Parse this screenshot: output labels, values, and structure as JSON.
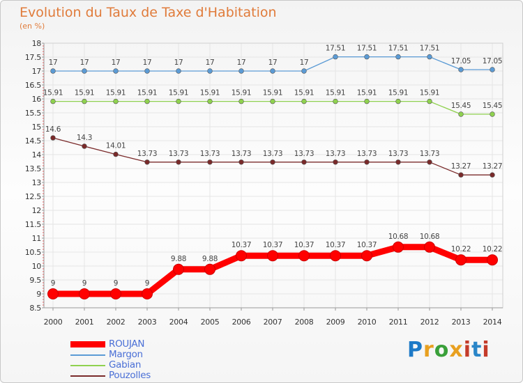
{
  "title": "Evolution du Taux de Taxe d'Habitation",
  "subtitle": "(en %)",
  "logo": {
    "text": "Proxiti",
    "colors": [
      "#1e7ac7",
      "#e8a020",
      "#3aa03a",
      "#e8a020",
      "#c43b2a",
      "#2a86c8",
      "#c43b2a"
    ]
  },
  "colors": {
    "frame_border": "#c8c8c8",
    "title": "#e07b3a",
    "grid": "#e5e5e5",
    "legend_text": "#4a6fd6"
  },
  "chart_data": {
    "type": "line",
    "title": "Evolution du Taux de Taxe d'Habitation",
    "ylabel": "(en %)",
    "xlabel": "",
    "x": [
      "2000",
      "2001",
      "2002",
      "2003",
      "2004",
      "2005",
      "2006",
      "2007",
      "2008",
      "2009",
      "2010",
      "2011",
      "2012",
      "2013",
      "2014"
    ],
    "ylim": [
      8.5,
      18
    ],
    "yticks": [
      "8.5",
      "9",
      "9.5",
      "10",
      "10.5",
      "11",
      "11.5",
      "12",
      "12.5",
      "13",
      "13.5",
      "14",
      "14.5",
      "15",
      "15.5",
      "16",
      "16.5",
      "17",
      "17.5",
      "18"
    ],
    "grid": true,
    "legend_position": "bottom-left",
    "series": [
      {
        "name": "ROUJAN",
        "color": "#ff0000",
        "emphasis": true,
        "values": [
          9,
          9,
          9,
          9,
          9.88,
          9.88,
          10.37,
          10.37,
          10.37,
          10.37,
          10.37,
          10.68,
          10.68,
          10.22,
          10.22
        ],
        "labels": [
          "9",
          "9",
          "9",
          "9",
          "9.88",
          "9.88",
          "10.37",
          "10.37",
          "10.37",
          "10.37",
          "10.37",
          "10.68",
          "10.68",
          "10.22",
          "10.22"
        ]
      },
      {
        "name": "Margon",
        "color": "#5b9bd5",
        "emphasis": false,
        "values": [
          17,
          17,
          17,
          17,
          17,
          17,
          17,
          17,
          17,
          17.51,
          17.51,
          17.51,
          17.51,
          17.05,
          17.05
        ],
        "labels": [
          "17",
          "17",
          "17",
          "17",
          "17",
          "17",
          "17",
          "17",
          "17",
          "17.51",
          "17.51",
          "17.51",
          "17.51",
          "17.05",
          "17.05"
        ]
      },
      {
        "name": "Gabian",
        "color": "#8fd14f",
        "emphasis": false,
        "values": [
          15.91,
          15.91,
          15.91,
          15.91,
          15.91,
          15.91,
          15.91,
          15.91,
          15.91,
          15.91,
          15.91,
          15.91,
          15.91,
          15.45,
          15.45
        ],
        "labels": [
          "15.91",
          "15.91",
          "15.91",
          "15.91",
          "15.91",
          "15.91",
          "15.91",
          "15.91",
          "15.91",
          "15.91",
          "15.91",
          "15.91",
          "15.91",
          "15.45",
          "15.45"
        ]
      },
      {
        "name": "Pouzolles",
        "color": "#7a2a2a",
        "emphasis": false,
        "values": [
          14.6,
          14.3,
          14.01,
          13.73,
          13.73,
          13.73,
          13.73,
          13.73,
          13.73,
          13.73,
          13.73,
          13.73,
          13.73,
          13.27,
          13.27
        ],
        "labels": [
          "14.6",
          "14.3",
          "14.01",
          "13.73",
          "13.73",
          "13.73",
          "13.73",
          "13.73",
          "13.73",
          "13.73",
          "13.73",
          "13.73",
          "13.73",
          "13.27",
          "13.27"
        ]
      }
    ]
  }
}
